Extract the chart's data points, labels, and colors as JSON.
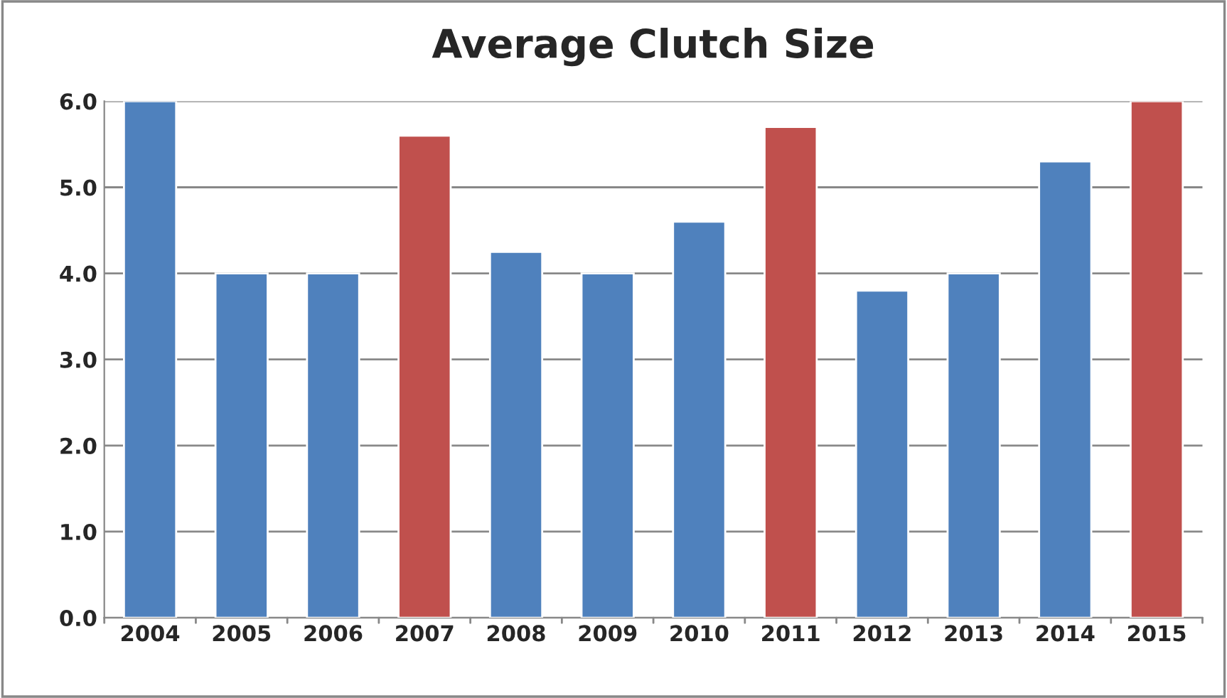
{
  "chart_data": {
    "type": "bar",
    "title": "Average Clutch Size",
    "categories": [
      "2004",
      "2005",
      "2006",
      "2007",
      "2008",
      "2009",
      "2010",
      "2011",
      "2012",
      "2013",
      "2014",
      "2015"
    ],
    "values": [
      6.0,
      4.0,
      4.0,
      5.6,
      4.25,
      4.0,
      4.6,
      5.7,
      3.8,
      4.0,
      5.3,
      6.0
    ],
    "colors": [
      "#4f81bd",
      "#4f81bd",
      "#4f81bd",
      "#c0504d",
      "#4f81bd",
      "#4f81bd",
      "#4f81bd",
      "#c0504d",
      "#4f81bd",
      "#4f81bd",
      "#4f81bd",
      "#c0504d"
    ],
    "ylim": [
      0,
      6
    ],
    "yticks": [
      {
        "value": 0,
        "label": "0.0"
      },
      {
        "value": 1,
        "label": "1.0"
      },
      {
        "value": 2,
        "label": "2.0"
      },
      {
        "value": 3,
        "label": "3.0"
      },
      {
        "value": 4,
        "label": "4.0"
      },
      {
        "value": 5,
        "label": "5.0"
      },
      {
        "value": 6,
        "label": "6.0"
      }
    ],
    "grid": "y",
    "legend": false
  }
}
